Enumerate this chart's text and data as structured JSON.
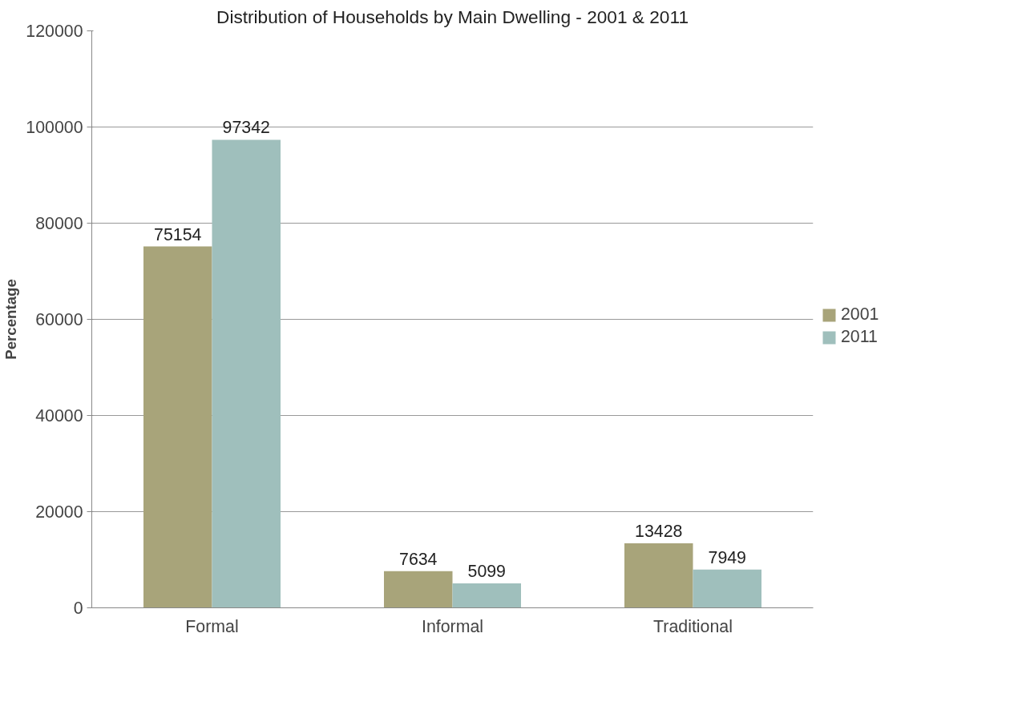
{
  "chart_data": {
    "type": "bar",
    "title": "Distribution of Households by Main Dwelling - 2001 & 2011",
    "ylabel": "Percentage",
    "categories": [
      "Formal",
      "Informal",
      "Traditional"
    ],
    "series": [
      {
        "name": "2001",
        "color": "#a8a47a",
        "values": [
          75154,
          7634,
          13428
        ]
      },
      {
        "name": "2011",
        "color": "#9fbfbc",
        "values": [
          97342,
          5099,
          7949
        ]
      }
    ],
    "ylim": [
      0,
      120000
    ],
    "yticks": [
      0,
      20000,
      40000,
      60000,
      80000,
      100000,
      120000
    ],
    "grid": "y",
    "legend": "right",
    "data_labels": true
  }
}
